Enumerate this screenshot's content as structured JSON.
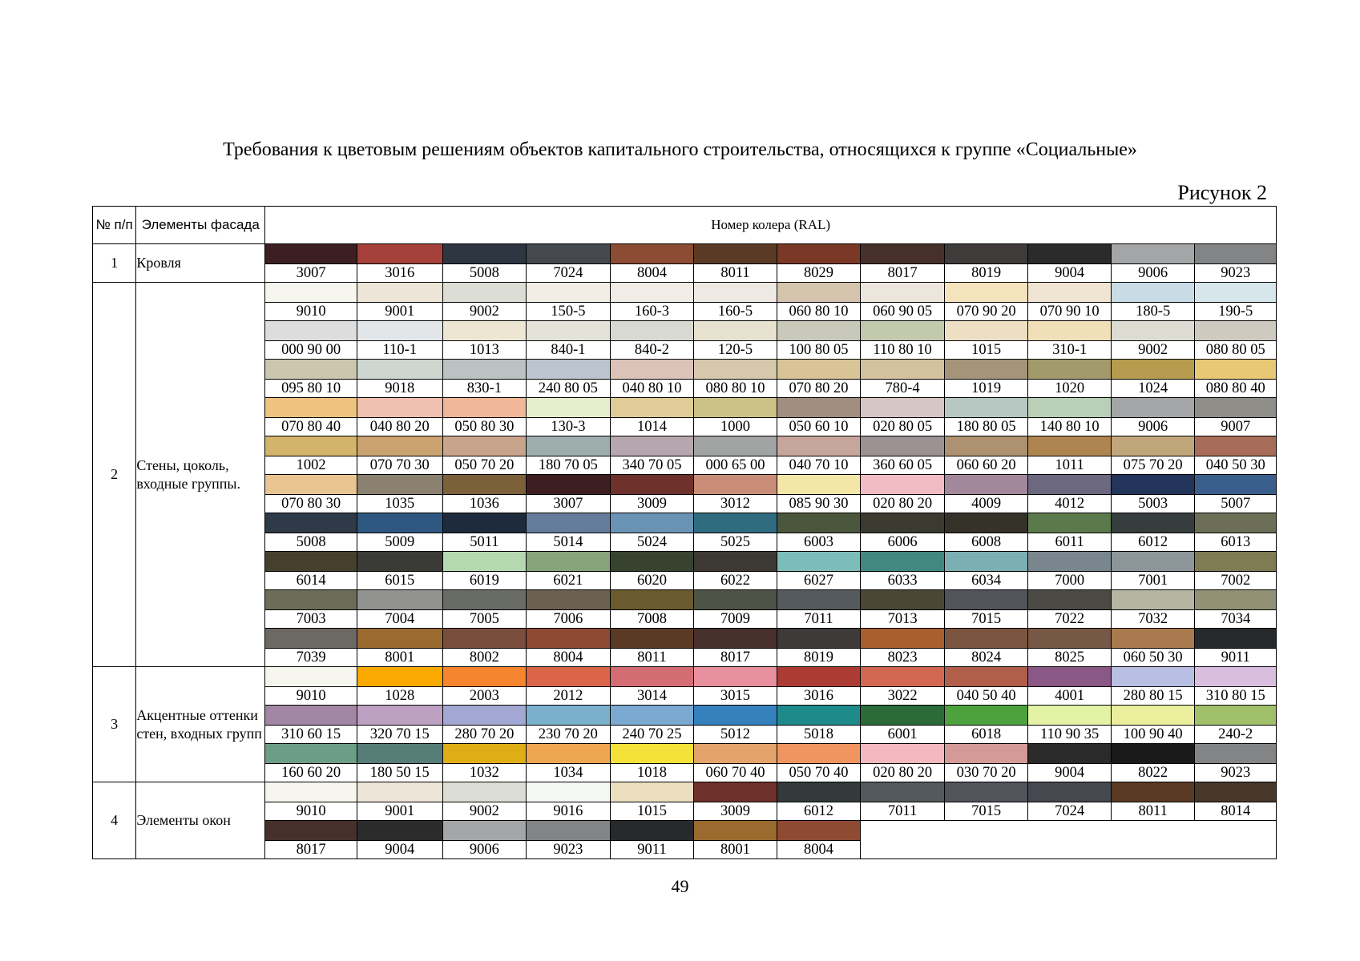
{
  "title": "Требования к цветовым решениям объектов капитального строительства, относящихся к группе «Социальные»",
  "figure_label": "Рисунок 2",
  "table": {
    "header": {
      "num": "№ п/п",
      "elements": "Элементы фасада",
      "ral": "Номер колера (RAL)"
    },
    "groups": [
      {
        "num": "1",
        "name": "Кровля",
        "rows": [
          [
            {
              "code": "3007",
              "color": "#3d1f22"
            },
            {
              "code": "3016",
              "color": "#a5413a"
            },
            {
              "code": "5008",
              "color": "#2d3641"
            },
            {
              "code": "7024",
              "color": "#45484f"
            },
            {
              "code": "8004",
              "color": "#8c4b33"
            },
            {
              "code": "8011",
              "color": "#5b3a25"
            },
            {
              "code": "8029",
              "color": "#7a3826"
            },
            {
              "code": "8017",
              "color": "#47302b"
            },
            {
              "code": "8019",
              "color": "#3e3b3a"
            },
            {
              "code": "9004",
              "color": "#2b2b2c"
            },
            {
              "code": "9006",
              "color": "#a3a5a6"
            },
            {
              "code": "9023",
              "color": "#838485"
            }
          ]
        ]
      },
      {
        "num": "2",
        "name": "Стены, цоколь, входные группы.",
        "rows": [
          [
            {
              "code": "9010",
              "color": "#f6f5ee"
            },
            {
              "code": "9001",
              "color": "#ede5d7"
            },
            {
              "code": "9002",
              "color": "#dcded6"
            },
            {
              "code": "150-5",
              "color": "#f3eee5"
            },
            {
              "code": "160-3",
              "color": "#f1ece6"
            },
            {
              "code": "160-5",
              "color": "#efe9e3"
            },
            {
              "code": "060 80 10",
              "color": "#d4c3ad"
            },
            {
              "code": "060 90 05",
              "color": "#ede6dd"
            },
            {
              "code": "070 90 20",
              "color": "#f4e3bd"
            },
            {
              "code": "070 90 10",
              "color": "#efe5d2"
            },
            {
              "code": "180-5",
              "color": "#c9dce5"
            },
            {
              "code": "190-5",
              "color": "#d6e6ea"
            }
          ],
          [
            {
              "code": "000 90 00",
              "color": "#dcdddc"
            },
            {
              "code": "110-1",
              "color": "#e2e6e8"
            },
            {
              "code": "1013",
              "color": "#ece6d3"
            },
            {
              "code": "840-1",
              "color": "#e3e3da"
            },
            {
              "code": "840-2",
              "color": "#d8d9d1"
            },
            {
              "code": "120-5",
              "color": "#e6e2cf"
            },
            {
              "code": "100 80 05",
              "color": "#c9c9bb"
            },
            {
              "code": "110 80 10",
              "color": "#c2c9ad"
            },
            {
              "code": "1015",
              "color": "#ecdfc3"
            },
            {
              "code": "310-1",
              "color": "#f1dfb9"
            },
            {
              "code": "9002",
              "color": "#dcdcd2"
            },
            {
              "code": "080 80 05",
              "color": "#cfcac0"
            }
          ],
          [
            {
              "code": "095 80 10",
              "color": "#ccc6ae"
            },
            {
              "code": "9018",
              "color": "#ced6d0"
            },
            {
              "code": "830-1",
              "color": "#bcc1c2"
            },
            {
              "code": "240 80 05",
              "color": "#bcc5cf"
            },
            {
              "code": "040 80 10",
              "color": "#dbc3b8"
            },
            {
              "code": "080 80 10",
              "color": "#d6c8ad"
            },
            {
              "code": "070 80 20",
              "color": "#d9c498"
            },
            {
              "code": "780-4",
              "color": "#d4c29f"
            },
            {
              "code": "1019",
              "color": "#a5937a"
            },
            {
              "code": "1020",
              "color": "#a39a6c"
            },
            {
              "code": "1024",
              "color": "#b79c50"
            },
            {
              "code": "080 80 40",
              "color": "#e8c875"
            }
          ],
          [
            {
              "code": "070 80 40",
              "color": "#efc27f"
            },
            {
              "code": "040 80 20",
              "color": "#efbfaf"
            },
            {
              "code": "050 80 30",
              "color": "#f0b898"
            },
            {
              "code": "130-3",
              "color": "#e6efcd"
            },
            {
              "code": "1014",
              "color": "#dfcc96"
            },
            {
              "code": "1000",
              "color": "#ccc288"
            },
            {
              "code": "050 60 10",
              "color": "#a18e80"
            },
            {
              "code": "020 80 05",
              "color": "#d6c6c4"
            },
            {
              "code": "180 80 05",
              "color": "#b7c8c2"
            },
            {
              "code": "140 80 10",
              "color": "#b9cfb7"
            },
            {
              "code": "9006",
              "color": "#a3a5a6"
            },
            {
              "code": "9007",
              "color": "#8e8d88"
            }
          ],
          [
            {
              "code": "1002",
              "color": "#d2b56a"
            },
            {
              "code": "070 70 30",
              "color": "#cba370"
            },
            {
              "code": "050 70 20",
              "color": "#c9a48c"
            },
            {
              "code": "180 70 05",
              "color": "#9dadab"
            },
            {
              "code": "340 70 05",
              "color": "#b6a6ae"
            },
            {
              "code": "000 65 00",
              "color": "#a2a3a3"
            },
            {
              "code": "040 70 10",
              "color": "#c6a69c"
            },
            {
              "code": "360 60 05",
              "color": "#9c9193"
            },
            {
              "code": "060 60 20",
              "color": "#ad9171"
            },
            {
              "code": "1011",
              "color": "#ae8551"
            },
            {
              "code": "075 70 20",
              "color": "#c1a67c"
            },
            {
              "code": "040 50 30",
              "color": "#a86d58"
            }
          ],
          [
            {
              "code": "070 80 30",
              "color": "#e9c591"
            },
            {
              "code": "1035",
              "color": "#8a8170"
            },
            {
              "code": "1036",
              "color": "#7b603a"
            },
            {
              "code": "3007",
              "color": "#3d1f22"
            },
            {
              "code": "3009",
              "color": "#6f312c"
            },
            {
              "code": "3012",
              "color": "#c98d77"
            },
            {
              "code": "085 90 30",
              "color": "#f4e6a6"
            },
            {
              "code": "020 80 20",
              "color": "#f1bcc3"
            },
            {
              "code": "4009",
              "color": "#a2889a"
            },
            {
              "code": "4012",
              "color": "#6b6880"
            },
            {
              "code": "5003",
              "color": "#23355a"
            },
            {
              "code": "5007",
              "color": "#3b5f8c"
            }
          ],
          [
            {
              "code": "5008",
              "color": "#2f3a48"
            },
            {
              "code": "5009",
              "color": "#2e5880"
            },
            {
              "code": "5011",
              "color": "#1e2b3d"
            },
            {
              "code": "5014",
              "color": "#657b9c"
            },
            {
              "code": "5024",
              "color": "#6893b4"
            },
            {
              "code": "5025",
              "color": "#2f6c80"
            },
            {
              "code": "6003",
              "color": "#4b573c"
            },
            {
              "code": "6006",
              "color": "#3b3a30"
            },
            {
              "code": "6008",
              "color": "#35322a"
            },
            {
              "code": "6011",
              "color": "#5b7a4c"
            },
            {
              "code": "6012",
              "color": "#363e3d"
            },
            {
              "code": "6013",
              "color": "#6c6f55"
            }
          ],
          [
            {
              "code": "6014",
              "color": "#463f2d"
            },
            {
              "code": "6015",
              "color": "#3a3b36"
            },
            {
              "code": "6019",
              "color": "#b4d8b0"
            },
            {
              "code": "6021",
              "color": "#86a37a"
            },
            {
              "code": "6020",
              "color": "#37422f"
            },
            {
              "code": "6022",
              "color": "#3c3832"
            },
            {
              "code": "6027",
              "color": "#7cbdb9"
            },
            {
              "code": "6033",
              "color": "#428880"
            },
            {
              "code": "6034",
              "color": "#7bafb3"
            },
            {
              "code": "7000",
              "color": "#7a868e"
            },
            {
              "code": "7001",
              "color": "#8c959a"
            },
            {
              "code": "7002",
              "color": "#7f7b53"
            }
          ],
          [
            {
              "code": "7003",
              "color": "#6d6c58"
            },
            {
              "code": "7004",
              "color": "#929391"
            },
            {
              "code": "7005",
              "color": "#686c65"
            },
            {
              "code": "7006",
              "color": "#6a6151"
            },
            {
              "code": "7008",
              "color": "#6a5a2e"
            },
            {
              "code": "7009",
              "color": "#4d5347"
            },
            {
              "code": "7011",
              "color": "#545a5e"
            },
            {
              "code": "7013",
              "color": "#4a4835"
            },
            {
              "code": "7015",
              "color": "#51545b"
            },
            {
              "code": "7022",
              "color": "#4c4a45"
            },
            {
              "code": "7032",
              "color": "#b6b5a4"
            },
            {
              "code": "7034",
              "color": "#929075"
            }
          ],
          [
            {
              "code": "7039",
              "color": "#6c6962"
            },
            {
              "code": "8001",
              "color": "#9a6a2e"
            },
            {
              "code": "8002",
              "color": "#7a4e3d"
            },
            {
              "code": "8004",
              "color": "#8e4a32"
            },
            {
              "code": "8011",
              "color": "#5a3a25"
            },
            {
              "code": "8017",
              "color": "#47302b"
            },
            {
              "code": "8019",
              "color": "#3e3a39"
            },
            {
              "code": "8023",
              "color": "#a8602f"
            },
            {
              "code": "8024",
              "color": "#7b5540"
            },
            {
              "code": "8025",
              "color": "#775846"
            },
            {
              "code": "060 50 30",
              "color": "#a87a4d"
            },
            {
              "code": "9011",
              "color": "#272a2d"
            }
          ]
        ]
      },
      {
        "num": "3",
        "name": "Акцентные оттенки стен, входных групп",
        "rows": [
          [
            {
              "code": "9010",
              "color": "#f6f5ee"
            },
            {
              "code": "1028",
              "color": "#f9a900"
            },
            {
              "code": "2003",
              "color": "#f7842f"
            },
            {
              "code": "2012",
              "color": "#da6549"
            },
            {
              "code": "3014",
              "color": "#d46c73"
            },
            {
              "code": "3015",
              "color": "#e8909e"
            },
            {
              "code": "3016",
              "color": "#ac3b33"
            },
            {
              "code": "3022",
              "color": "#d2684f"
            },
            {
              "code": "040 50 40",
              "color": "#b15f4b"
            },
            {
              "code": "4001",
              "color": "#8a5884"
            },
            {
              "code": "280 80 15",
              "color": "#b9bfe2"
            },
            {
              "code": "310 80 15",
              "color": "#d9bedf"
            }
          ],
          [
            {
              "code": "310 60 15",
              "color": "#a286a3"
            },
            {
              "code": "320 70 15",
              "color": "#bda0c2"
            },
            {
              "code": "280 70 20",
              "color": "#a3a7d3"
            },
            {
              "code": "230 70 20",
              "color": "#7ab0cc"
            },
            {
              "code": "240 70 25",
              "color": "#7ba9d2"
            },
            {
              "code": "5012",
              "color": "#3481bd"
            },
            {
              "code": "5018",
              "color": "#1f8a8a"
            },
            {
              "code": "6001",
              "color": "#2b6b3a"
            },
            {
              "code": "6018",
              "color": "#4ea23d"
            },
            {
              "code": "110 90 35",
              "color": "#e3f2a5"
            },
            {
              "code": "100 90 40",
              "color": "#ebef9d"
            },
            {
              "code": "240-2",
              "color": "#a0c06a"
            }
          ],
          [
            {
              "code": "160 60 20",
              "color": "#6c9e86"
            },
            {
              "code": "180 50 15",
              "color": "#577d78"
            },
            {
              "code": "1032",
              "color": "#dfae16"
            },
            {
              "code": "1034",
              "color": "#efa651"
            },
            {
              "code": "1018",
              "color": "#f4e23a"
            },
            {
              "code": "060 70 40",
              "color": "#e3a36b"
            },
            {
              "code": "050 70 40",
              "color": "#f0955f"
            },
            {
              "code": "020 80 20",
              "color": "#f4b9bf"
            },
            {
              "code": "030 70 20",
              "color": "#d49a97"
            },
            {
              "code": "9004",
              "color": "#2a2a2b"
            },
            {
              "code": "8022",
              "color": "#1b1a1a"
            },
            {
              "code": "9023",
              "color": "#838485"
            }
          ]
        ]
      },
      {
        "num": "4",
        "name": "Элементы окон",
        "rows": [
          [
            {
              "code": "9010",
              "color": "#f6f5ee"
            },
            {
              "code": "9001",
              "color": "#ede5d7"
            },
            {
              "code": "9002",
              "color": "#dcded6"
            },
            {
              "code": "9016",
              "color": "#f4f7f2"
            },
            {
              "code": "1015",
              "color": "#ecdfbf"
            },
            {
              "code": "3009",
              "color": "#6f312c"
            },
            {
              "code": "6012",
              "color": "#323a3a"
            },
            {
              "code": "7011",
              "color": "#54595d"
            },
            {
              "code": "7015",
              "color": "#51545b"
            },
            {
              "code": "7024",
              "color": "#45484f"
            },
            {
              "code": "8011",
              "color": "#5a3a25"
            },
            {
              "code": "8014",
              "color": "#48382c"
            }
          ],
          [
            {
              "code": "8017",
              "color": "#47302b"
            },
            {
              "code": "9004",
              "color": "#2b2b2c"
            },
            {
              "code": "9006",
              "color": "#a3a5a6"
            },
            {
              "code": "9023",
              "color": "#838485"
            },
            {
              "code": "9011",
              "color": "#262a2d"
            },
            {
              "code": "8001",
              "color": "#9a6a2e"
            },
            {
              "code": "8004",
              "color": "#8e4a32"
            }
          ]
        ]
      }
    ]
  },
  "page_number": "49"
}
